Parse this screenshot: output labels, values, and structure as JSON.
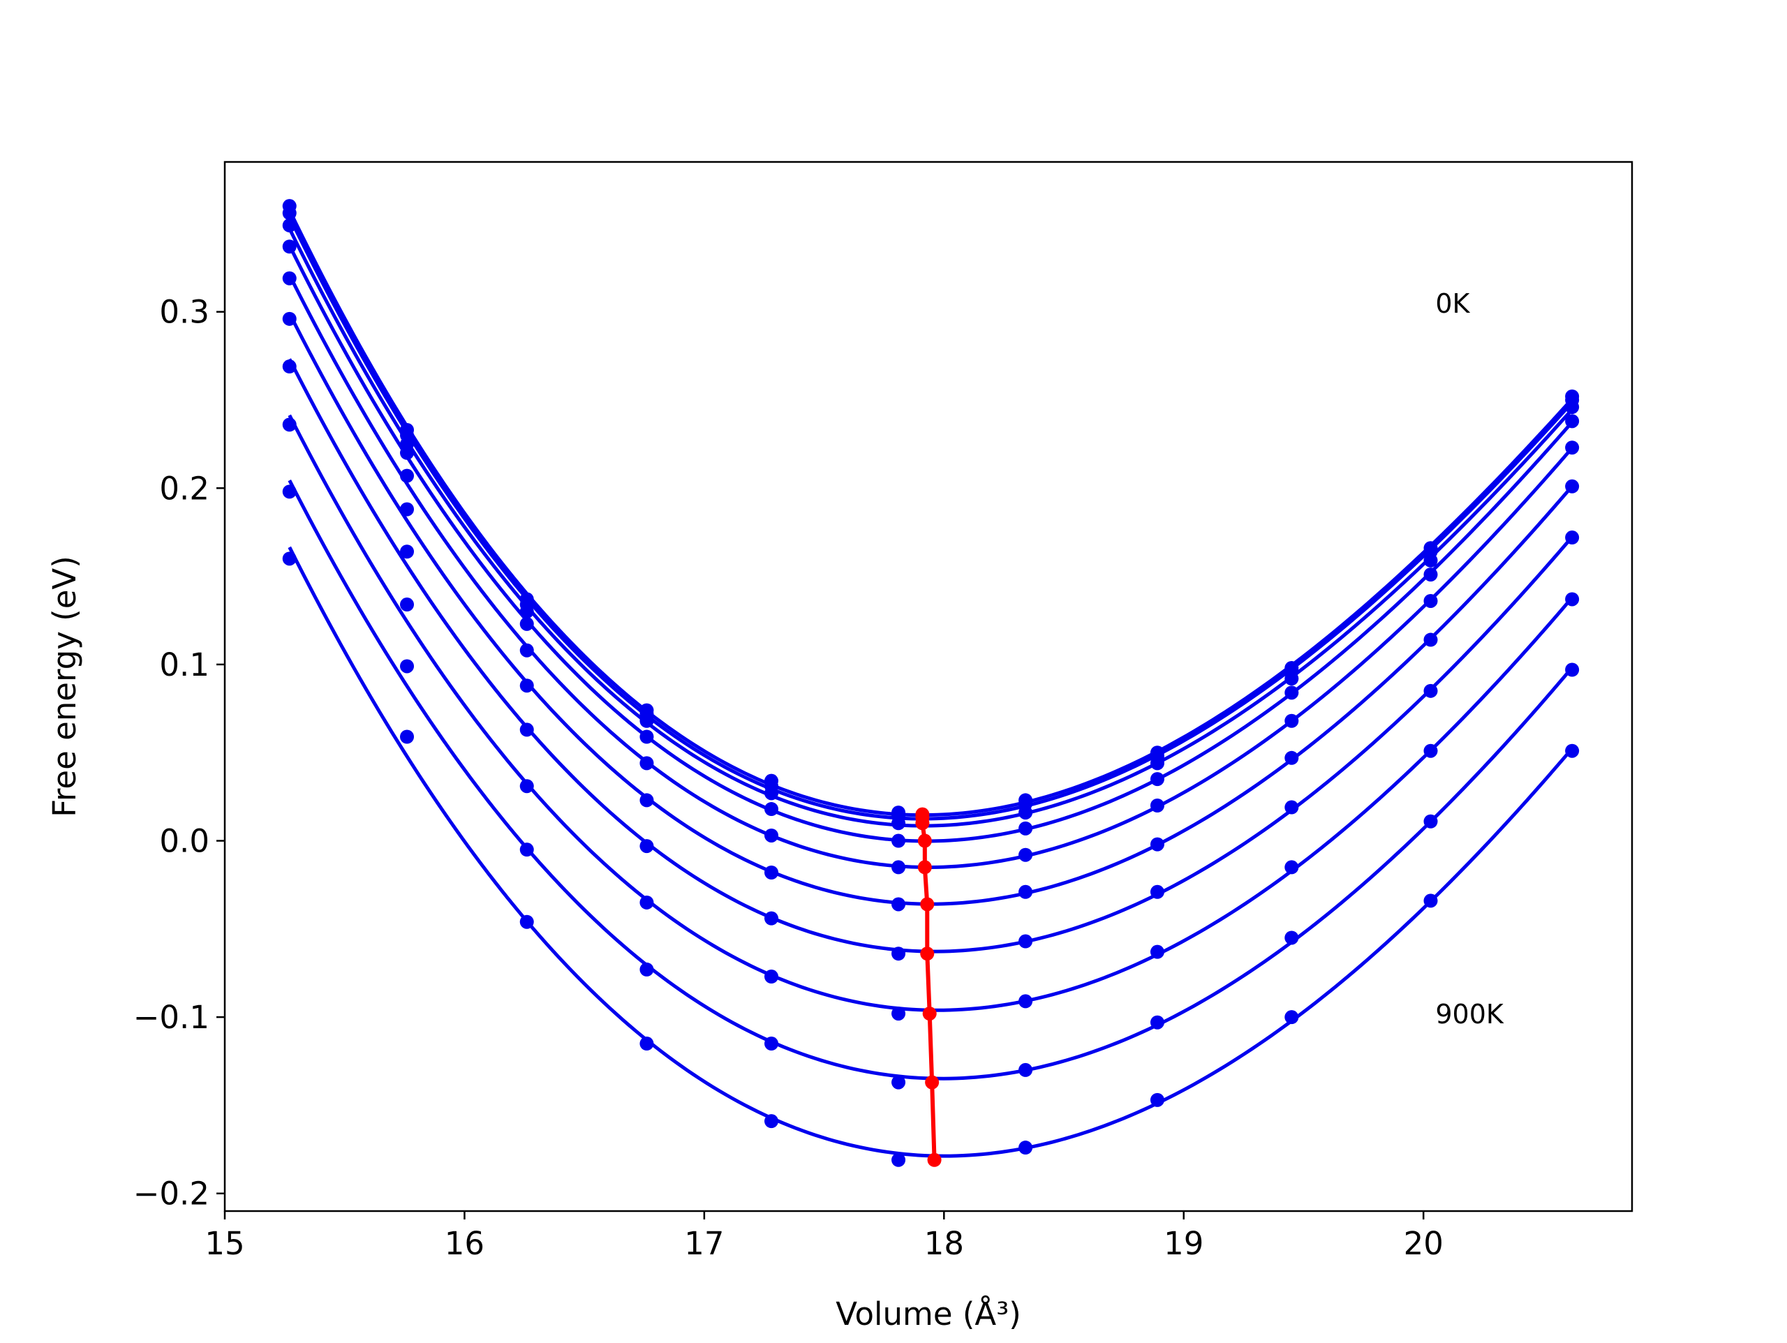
{
  "chart_data": {
    "type": "line",
    "xlabel": "Volume (Å³)",
    "ylabel": "Free energy (eV)",
    "xlim": [
      15.0,
      20.87
    ],
    "ylim": [
      -0.21,
      0.385
    ],
    "xticks": [
      15,
      16,
      17,
      18,
      19,
      20
    ],
    "xtick_labels": [
      "15",
      "16",
      "17",
      "18",
      "19",
      "20"
    ],
    "yticks": [
      -0.2,
      -0.1,
      0.0,
      0.1,
      0.2,
      0.3
    ],
    "ytick_labels": [
      "−0.2",
      "−0.1",
      "0.0",
      "0.1",
      "0.2",
      "0.3"
    ],
    "grid": false,
    "x": [
      15.27,
      15.76,
      16.26,
      16.76,
      17.28,
      17.81,
      18.34,
      18.89,
      19.45,
      20.03,
      20.62
    ],
    "series": [
      {
        "values": [
          0.36,
          0.233,
          0.137,
          0.074,
          0.034,
          0.016,
          0.023,
          0.05,
          0.098,
          0.166,
          0.252
        ],
        "min_volume": 17.91,
        "min_energy": 0.015
      },
      {
        "values": [
          0.356,
          0.23,
          0.134,
          0.072,
          0.031,
          0.014,
          0.021,
          0.048,
          0.096,
          0.164,
          0.25
        ],
        "min_volume": 17.91,
        "min_energy": 0.013
      },
      {
        "values": [
          0.349,
          0.225,
          0.13,
          0.068,
          0.027,
          0.01,
          0.016,
          0.044,
          0.092,
          0.159,
          0.246
        ],
        "min_volume": 17.91,
        "min_energy": 0.01
      },
      {
        "values": [
          0.337,
          0.22,
          0.123,
          0.059,
          0.018,
          0.0,
          0.007,
          0.035,
          0.084,
          0.151,
          0.238
        ],
        "min_volume": 17.92,
        "min_energy": 0.0
      },
      {
        "values": [
          0.319,
          0.207,
          0.108,
          0.044,
          0.003,
          -0.015,
          -0.008,
          0.02,
          0.068,
          0.136,
          0.223
        ],
        "min_volume": 17.92,
        "min_energy": -0.015
      },
      {
        "values": [
          0.296,
          0.188,
          0.088,
          0.023,
          -0.018,
          -0.036,
          -0.029,
          -0.002,
          0.047,
          0.114,
          0.201
        ],
        "min_volume": 17.93,
        "min_energy": -0.036
      },
      {
        "values": [
          0.269,
          0.164,
          0.063,
          -0.003,
          -0.044,
          -0.064,
          -0.057,
          -0.029,
          0.019,
          0.085,
          0.172
        ],
        "min_volume": 17.93,
        "min_energy": -0.064
      },
      {
        "values": [
          0.236,
          0.134,
          0.031,
          -0.035,
          -0.077,
          -0.098,
          -0.091,
          -0.063,
          -0.015,
          0.051,
          0.137
        ],
        "min_volume": 17.94,
        "min_energy": -0.098
      },
      {
        "values": [
          0.198,
          0.099,
          -0.005,
          -0.073,
          -0.115,
          -0.137,
          -0.13,
          -0.103,
          -0.055,
          0.011,
          0.097
        ],
        "min_volume": 17.95,
        "min_energy": -0.137
      },
      {
        "values": [
          0.16,
          0.059,
          -0.046,
          -0.115,
          -0.159,
          -0.181,
          -0.174,
          -0.147,
          -0.1,
          -0.034,
          0.051
        ],
        "min_volume": 17.96,
        "min_energy": -0.181
      }
    ],
    "colors": {
      "curves": "#0000ee",
      "minimum_path": "#ff0000"
    },
    "annotations": [
      {
        "text": "0K",
        "x": 20.05,
        "y": 0.305
      },
      {
        "text": "900K",
        "x": 20.05,
        "y": -0.098
      }
    ]
  }
}
